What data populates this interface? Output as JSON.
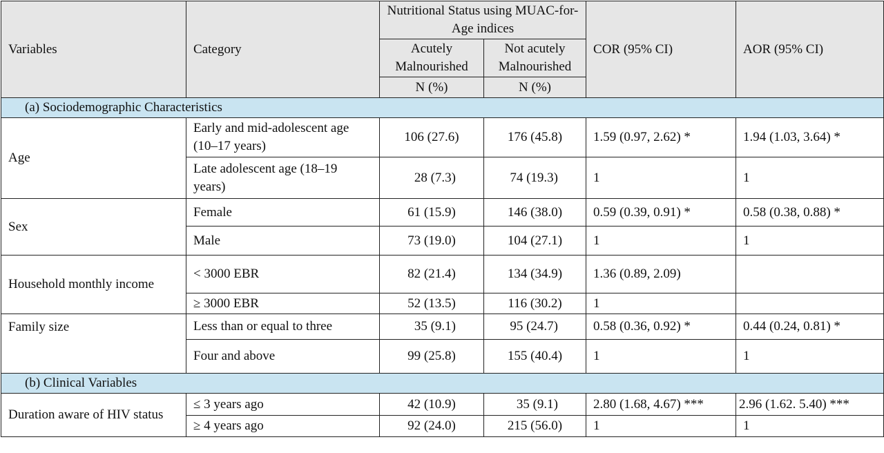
{
  "header": {
    "variables": "Variables",
    "category": "Category",
    "group_title": "Nutritional Status using MUAC-for-Age indices",
    "acute": "Acutely Malnourished",
    "not_acute": "Not acutely Malnourished",
    "cor": "COR (95% CI)",
    "aor": "AOR (95% CI)",
    "n_pct_1": "N (%)",
    "n_pct_2": "N (%)"
  },
  "sections": [
    {
      "title": "(a) Sociodemographic Characteristics",
      "variables": [
        {
          "name": "Age",
          "rows": [
            {
              "category": "Early and mid-adolescent age (10–17 years)",
              "acute": "106 (27.6)",
              "not_acute": "176 (45.8)",
              "cor": "1.59 (0.97, 2.62) *",
              "aor": "1.94 (1.03, 3.64) *"
            },
            {
              "category": "Late adolescent age (18–19 years)",
              "acute": "28 (7.3)",
              "not_acute": "74 (19.3)",
              "cor": "1",
              "aor": "1"
            }
          ]
        },
        {
          "name": "Sex",
          "rows": [
            {
              "category": "Female",
              "acute": "61 (15.9)",
              "not_acute": "146 (38.0)",
              "cor": "0.59 (0.39, 0.91) *",
              "aor": "0.58 (0.38, 0.88) *"
            },
            {
              "category": "Male",
              "acute": "73 (19.0)",
              "not_acute": "104 (27.1)",
              "cor": "1",
              "aor": "1"
            }
          ]
        },
        {
          "name": "Household monthly income",
          "rows": [
            {
              "category": "< 3000 EBR",
              "acute": "82 (21.4)",
              "not_acute": "134 (34.9)",
              "cor": "1.36 (0.89, 2.09)",
              "aor": ""
            },
            {
              "category": "≥ 3000 EBR",
              "acute": "52 (13.5)",
              "not_acute": "116 (30.2)",
              "cor": "1",
              "aor": ""
            }
          ]
        },
        {
          "name": "Family size",
          "rows": [
            {
              "category": "Less than or equal to three",
              "acute": "35 (9.1)",
              "not_acute": "95 (24.7)",
              "cor": "0.58 (0.36, 0.92) *",
              "aor": "0.44 (0.24, 0.81) *"
            },
            {
              "category": "Four and above",
              "acute": "99 (25.8)",
              "not_acute": "155 (40.4)",
              "cor": " 1",
              "aor": "1"
            }
          ]
        }
      ]
    },
    {
      "title": "(b) Clinical Variables",
      "variables": [
        {
          "name": "Duration aware of HIV status",
          "rows": [
            {
              "category": "≤ 3 years ago",
              "acute": "42 (10.9)",
              "not_acute": "35 (9.1)",
              "cor": "2.80 (1.68, 4.67) ***",
              "aor": "2.96 (1.62. 5.40) ***"
            },
            {
              "category": "≥ 4 years ago",
              "acute": "92 (24.0)",
              "not_acute": "215 (56.0)",
              "cor": "1",
              "aor": "1"
            }
          ]
        }
      ]
    }
  ]
}
